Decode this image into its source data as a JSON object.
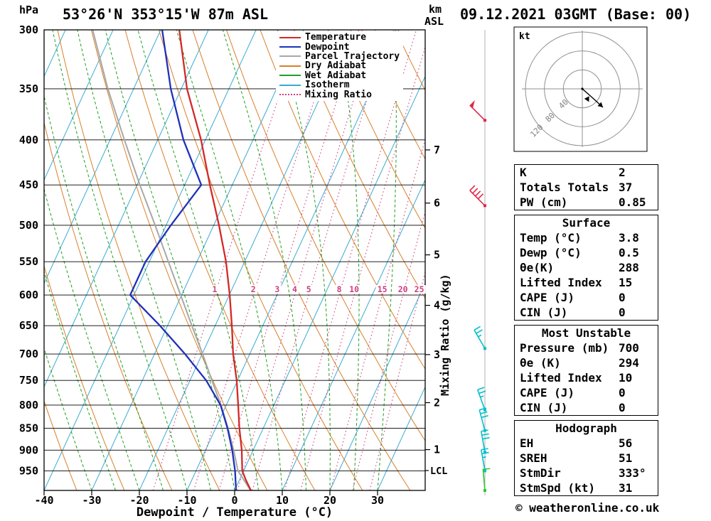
{
  "header": {
    "pressure_unit": "hPa",
    "station": "53°26'N 353°15'W 87m ASL",
    "datetime": "09.12.2021 03GMT (Base: 00)",
    "km_label": "km",
    "asl_label": "ASL"
  },
  "colors": {
    "temperature": "#d42828",
    "dewpoint": "#2030bb",
    "parcel": "#a8a8a8",
    "dry_adiabat": "#d8802a",
    "wet_adiabat": "#22a022",
    "isotherm": "#3aabd2",
    "mixing_ratio": "#cf3d7f",
    "grid": "#000000",
    "barb_line": "#b0b0b0",
    "barb_red": "#e02848",
    "barb_cyan": "#00c0cc",
    "barb_green": "#30c830",
    "hodo_ring": "#909090",
    "hodo_label": "#808080"
  },
  "legend": [
    {
      "label": "Temperature",
      "color": "#d42828",
      "dash": "solid"
    },
    {
      "label": "Dewpoint",
      "color": "#2030bb",
      "dash": "solid"
    },
    {
      "label": "Parcel Trajectory",
      "color": "#a8a8a8",
      "dash": "solid"
    },
    {
      "label": "Dry Adiabat",
      "color": "#d8802a",
      "dash": "solid"
    },
    {
      "label": "Wet Adiabat",
      "color": "#22a022",
      "dash": "solid"
    },
    {
      "label": "Isotherm",
      "color": "#3aabd2",
      "dash": "solid"
    },
    {
      "label": "Mixing Ratio",
      "color": "#cf3d7f",
      "dash": "dotted"
    }
  ],
  "chart_data": {
    "type": "line",
    "subtype": "skew_t_log_p_sounding",
    "xlabel": "Dewpoint / Temperature (°C)",
    "ylabel": "hPa",
    "mixing_axis_label": "Mixing Ratio (g/kg)",
    "lcl_label": "LCL",
    "pressure_ticks": [
      300,
      350,
      400,
      450,
      500,
      550,
      600,
      650,
      700,
      750,
      800,
      850,
      900,
      950
    ],
    "temp_ticks": [
      -40,
      -30,
      -20,
      -10,
      0,
      10,
      20,
      30
    ],
    "km_ticks": [
      1,
      2,
      3,
      4,
      5,
      6,
      7
    ],
    "mixing_ratio_values": [
      1,
      2,
      3,
      4,
      5,
      8,
      10,
      15,
      20,
      25
    ],
    "temperature_profile": [
      [
        1005,
        3.8
      ],
      [
        975,
        1.5
      ],
      [
        950,
        -0.3
      ],
      [
        900,
        -2.4
      ],
      [
        850,
        -5.0
      ],
      [
        800,
        -7.5
      ],
      [
        750,
        -10.2
      ],
      [
        700,
        -13.5
      ],
      [
        650,
        -16.5
      ],
      [
        600,
        -19.9
      ],
      [
        550,
        -23.9
      ],
      [
        500,
        -28.9
      ],
      [
        450,
        -34.7
      ],
      [
        400,
        -40.9
      ],
      [
        350,
        -48.8
      ],
      [
        300,
        -56.1
      ]
    ],
    "dewpoint_profile": [
      [
        1005,
        0.5
      ],
      [
        950,
        -1.8
      ],
      [
        900,
        -4.4
      ],
      [
        850,
        -7.5
      ],
      [
        800,
        -11.2
      ],
      [
        750,
        -16.6
      ],
      [
        700,
        -23.6
      ],
      [
        650,
        -31.6
      ],
      [
        600,
        -40.8
      ],
      [
        550,
        -40.8
      ],
      [
        500,
        -39.0
      ],
      [
        450,
        -36.5
      ],
      [
        400,
        -44.6
      ],
      [
        350,
        -52.2
      ],
      [
        300,
        -59.7
      ]
    ],
    "parcel_profile": [
      [
        1005,
        3.8
      ],
      [
        950,
        -1.2
      ],
      [
        900,
        -4.1
      ],
      [
        850,
        -7.4
      ],
      [
        800,
        -11.1
      ],
      [
        750,
        -15.4
      ],
      [
        700,
        -19.9
      ],
      [
        650,
        -24.9
      ],
      [
        600,
        -30.2
      ],
      [
        550,
        -36.0
      ],
      [
        500,
        -42.3
      ],
      [
        450,
        -49.4
      ],
      [
        400,
        -57.0
      ],
      [
        350,
        -65.4
      ],
      [
        300,
        -74.3
      ]
    ],
    "wind_barbs": [
      {
        "pressure": 380,
        "speed_kt": 50,
        "dir_deg": 315,
        "color_key": "barb_red"
      },
      {
        "pressure": 475,
        "speed_kt": 40,
        "dir_deg": 315,
        "color_key": "barb_red"
      },
      {
        "pressure": 690,
        "speed_kt": 25,
        "dir_deg": 330,
        "color_key": "barb_cyan"
      },
      {
        "pressure": 810,
        "speed_kt": 25,
        "dir_deg": 340,
        "color_key": "barb_cyan"
      },
      {
        "pressure": 855,
        "speed_kt": 30,
        "dir_deg": 345,
        "color_key": "barb_cyan"
      },
      {
        "pressure": 905,
        "speed_kt": 30,
        "dir_deg": 350,
        "color_key": "barb_cyan"
      },
      {
        "pressure": 950,
        "speed_kt": 25,
        "dir_deg": 350,
        "color_key": "barb_cyan"
      },
      {
        "pressure": 1000,
        "speed_kt": 10,
        "dir_deg": 355,
        "color_key": "barb_green"
      }
    ],
    "hodograph": {
      "unit": "kt",
      "rings_kt": [
        40,
        80,
        120
      ],
      "storm_dir_deg": 333,
      "storm_speed_kt": 31
    }
  },
  "tables": {
    "summary": {
      "rows": [
        [
          "K",
          "2"
        ],
        [
          "Totals Totals",
          "37"
        ],
        [
          "PW (cm)",
          "0.85"
        ]
      ]
    },
    "surface": {
      "title": "Surface",
      "rows": [
        [
          "Temp (°C)",
          "3.8"
        ],
        [
          "Dewp (°C)",
          "0.5"
        ],
        [
          "θe(K)",
          "288"
        ],
        [
          "Lifted Index",
          "15"
        ],
        [
          "CAPE (J)",
          "0"
        ],
        [
          "CIN (J)",
          "0"
        ]
      ]
    },
    "most_unstable": {
      "title": "Most Unstable",
      "rows": [
        [
          "Pressure (mb)",
          "700"
        ],
        [
          "θe (K)",
          "294"
        ],
        [
          "Lifted Index",
          "10"
        ],
        [
          "CAPE (J)",
          "0"
        ],
        [
          "CIN (J)",
          "0"
        ]
      ]
    },
    "hodograph": {
      "title": "Hodograph",
      "rows": [
        [
          "EH",
          "56"
        ],
        [
          "SREH",
          "51"
        ],
        [
          "StmDir",
          "333°"
        ],
        [
          "StmSpd (kt)",
          "31"
        ]
      ]
    }
  },
  "hodograph_panel": {
    "unit_label": "kt"
  },
  "footer": {
    "copyright": "© weatheronline.co.uk"
  }
}
